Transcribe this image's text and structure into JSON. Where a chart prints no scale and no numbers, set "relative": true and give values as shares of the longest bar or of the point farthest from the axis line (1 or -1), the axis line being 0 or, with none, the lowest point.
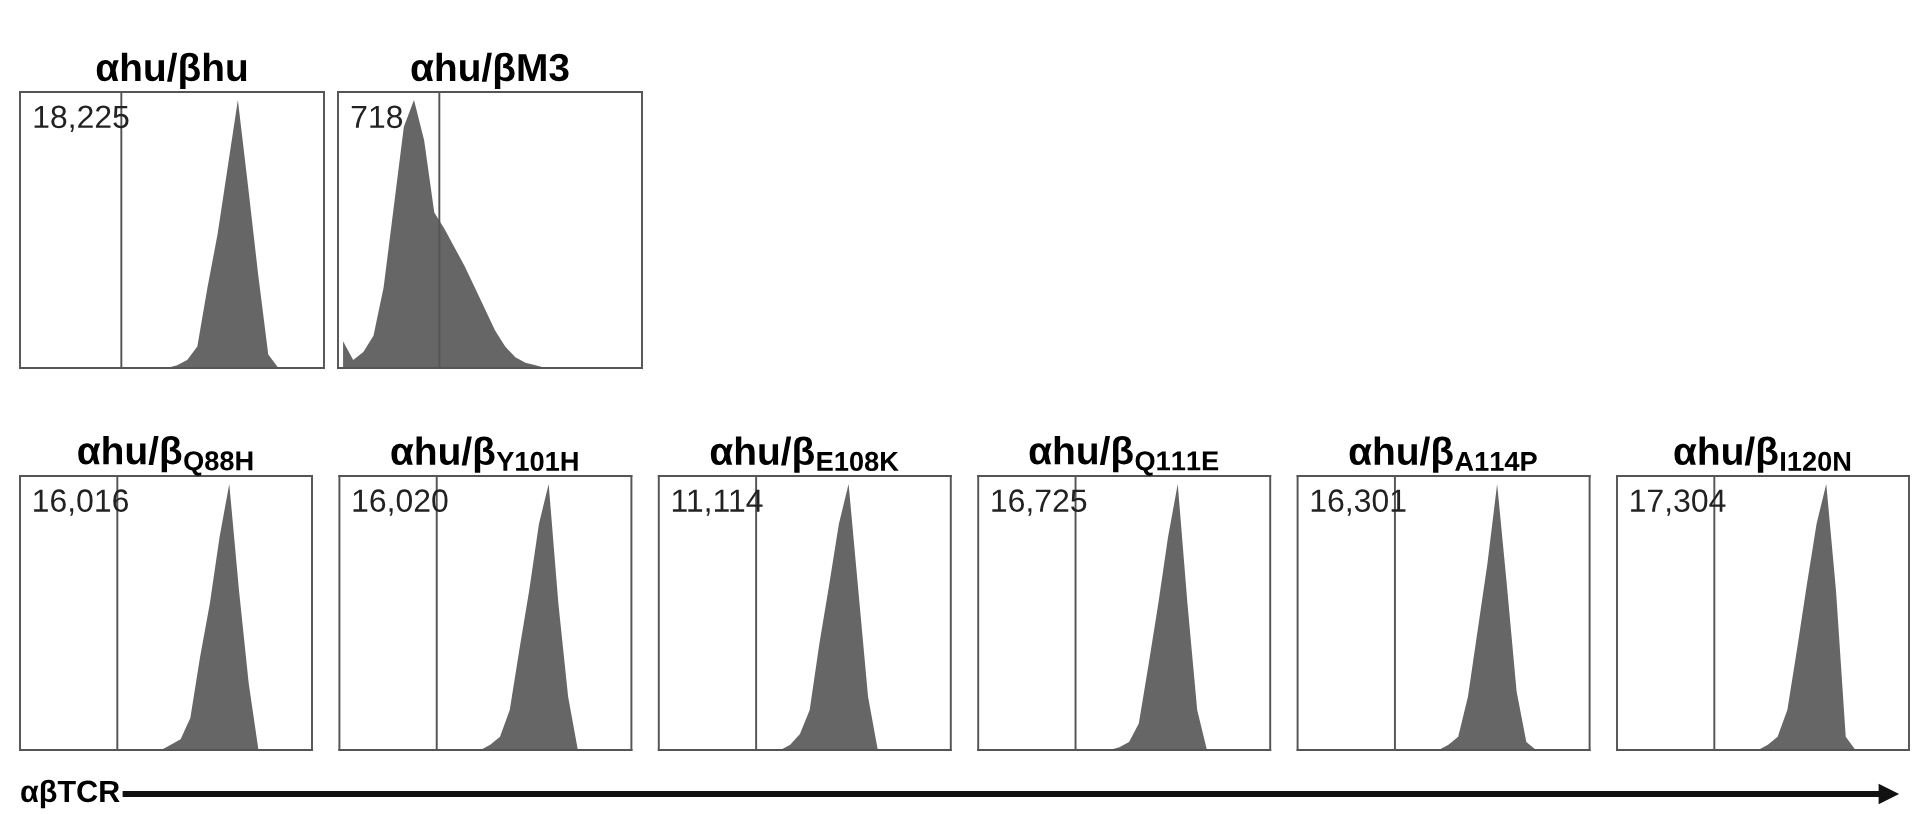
{
  "chart_data": [
    {
      "type": "area",
      "title": "αhu/βhu",
      "relative": true,
      "tick_labels": false,
      "categories": [
        null,
        null,
        null,
        null,
        null,
        null,
        null,
        null,
        null,
        null,
        null,
        null,
        null,
        null,
        null,
        null,
        null,
        null,
        null,
        null,
        null,
        null,
        null,
        null,
        null,
        null,
        null,
        null,
        null,
        null
      ],
      "series": [
        {
          "color": "#666666",
          "values": [
            0,
            0,
            0,
            0,
            0,
            0,
            0,
            0,
            0,
            0,
            0,
            0,
            0,
            0,
            0,
            0.01,
            0.03,
            0.08,
            0.3,
            0.5,
            0.75,
            1,
            0.68,
            0.35,
            0.05,
            0,
            0,
            0,
            0,
            0
          ]
        }
      ],
      "annotations": [
        "18,225"
      ]
    },
    {
      "type": "area",
      "title": "αhu/βM3",
      "relative": true,
      "tick_labels": false,
      "categories": [
        null,
        null,
        null,
        null,
        null,
        null,
        null,
        null,
        null,
        null,
        null,
        null,
        null,
        null,
        null,
        null,
        null,
        null,
        null,
        null,
        null,
        null,
        null,
        null,
        null,
        null,
        null,
        null,
        null,
        null
      ],
      "series": [
        {
          "color": "#666666",
          "values": [
            0.1,
            0.03,
            0.06,
            0.12,
            0.3,
            0.6,
            0.9,
            1,
            0.85,
            0.58,
            0.52,
            0.45,
            0.38,
            0.3,
            0.22,
            0.14,
            0.08,
            0.04,
            0.02,
            0.01,
            0,
            0,
            0,
            0,
            0,
            0,
            0,
            0,
            0,
            0
          ]
        }
      ],
      "annotations": [
        "718"
      ]
    },
    {
      "type": "area",
      "title": "αhu/β$_{Q88H}$",
      "relative": true,
      "tick_labels": false,
      "categories": [
        null,
        null,
        null,
        null,
        null,
        null,
        null,
        null,
        null,
        null,
        null,
        null,
        null,
        null,
        null,
        null,
        null,
        null,
        null,
        null,
        null,
        null,
        null,
        null,
        null,
        null,
        null,
        null,
        null,
        null
      ],
      "series": [
        {
          "color": "#666666",
          "values": [
            0,
            0,
            0,
            0,
            0,
            0,
            0,
            0,
            0,
            0,
            0,
            0,
            0,
            0,
            0,
            0.02,
            0.04,
            0.12,
            0.35,
            0.55,
            0.8,
            1,
            0.6,
            0.25,
            0,
            0,
            0,
            0,
            0,
            0
          ]
        }
      ],
      "annotations": [
        "16,016"
      ]
    },
    {
      "type": "area",
      "title": "αhu/β$_{Y101H}$",
      "relative": true,
      "tick_labels": false,
      "categories": [
        null,
        null,
        null,
        null,
        null,
        null,
        null,
        null,
        null,
        null,
        null,
        null,
        null,
        null,
        null,
        null,
        null,
        null,
        null,
        null,
        null,
        null,
        null,
        null,
        null,
        null,
        null,
        null,
        null,
        null
      ],
      "series": [
        {
          "color": "#666666",
          "values": [
            0,
            0,
            0,
            0,
            0,
            0,
            0,
            0,
            0,
            0,
            0,
            0,
            0,
            0,
            0,
            0.02,
            0.05,
            0.15,
            0.38,
            0.6,
            0.85,
            1,
            0.55,
            0.2,
            0,
            0,
            0,
            0,
            0,
            0
          ]
        }
      ],
      "annotations": [
        "16,020"
      ]
    },
    {
      "type": "area",
      "title": "αhu/β$_{E108K}$",
      "relative": true,
      "tick_labels": false,
      "categories": [
        null,
        null,
        null,
        null,
        null,
        null,
        null,
        null,
        null,
        null,
        null,
        null,
        null,
        null,
        null,
        null,
        null,
        null,
        null,
        null,
        null,
        null,
        null,
        null,
        null,
        null,
        null,
        null,
        null,
        null
      ],
      "series": [
        {
          "color": "#666666",
          "values": [
            0,
            0,
            0,
            0,
            0,
            0,
            0,
            0,
            0,
            0,
            0,
            0,
            0,
            0.02,
            0.06,
            0.15,
            0.4,
            0.62,
            0.85,
            1,
            0.6,
            0.2,
            0,
            0,
            0,
            0,
            0,
            0,
            0,
            0
          ]
        }
      ],
      "annotations": [
        "11,114"
      ]
    },
    {
      "type": "area",
      "title": "αhu/β$_{Q111E}$",
      "relative": true,
      "tick_labels": false,
      "categories": [
        null,
        null,
        null,
        null,
        null,
        null,
        null,
        null,
        null,
        null,
        null,
        null,
        null,
        null,
        null,
        null,
        null,
        null,
        null,
        null,
        null,
        null,
        null,
        null,
        null,
        null,
        null,
        null,
        null,
        null
      ],
      "series": [
        {
          "color": "#666666",
          "values": [
            0,
            0,
            0,
            0,
            0,
            0,
            0,
            0,
            0,
            0,
            0,
            0,
            0,
            0,
            0.01,
            0.03,
            0.1,
            0.32,
            0.55,
            0.8,
            1,
            0.55,
            0.15,
            0,
            0,
            0,
            0,
            0,
            0,
            0
          ]
        }
      ],
      "annotations": [
        "16,725"
      ]
    },
    {
      "type": "area",
      "title": "αhu/β$_{A114P}$",
      "relative": true,
      "tick_labels": false,
      "categories": [
        null,
        null,
        null,
        null,
        null,
        null,
        null,
        null,
        null,
        null,
        null,
        null,
        null,
        null,
        null,
        null,
        null,
        null,
        null,
        null,
        null,
        null,
        null,
        null,
        null,
        null,
        null,
        null,
        null,
        null
      ],
      "series": [
        {
          "color": "#666666",
          "values": [
            0,
            0,
            0,
            0,
            0,
            0,
            0,
            0,
            0,
            0,
            0,
            0,
            0,
            0,
            0,
            0.02,
            0.05,
            0.2,
            0.45,
            0.7,
            1,
            0.62,
            0.22,
            0.03,
            0,
            0,
            0,
            0,
            0,
            0
          ]
        }
      ],
      "annotations": [
        "16,301"
      ]
    },
    {
      "type": "area",
      "title": "αhu/β$_{I120N}$",
      "relative": true,
      "tick_labels": false,
      "categories": [
        null,
        null,
        null,
        null,
        null,
        null,
        null,
        null,
        null,
        null,
        null,
        null,
        null,
        null,
        null,
        null,
        null,
        null,
        null,
        null,
        null,
        null,
        null,
        null,
        null,
        null,
        null,
        null,
        null,
        null
      ],
      "series": [
        {
          "color": "#666666",
          "values": [
            0,
            0,
            0,
            0,
            0,
            0,
            0,
            0,
            0,
            0,
            0,
            0,
            0,
            0,
            0,
            0.02,
            0.05,
            0.15,
            0.38,
            0.62,
            0.85,
            1,
            0.6,
            0.05,
            0,
            0,
            0,
            0,
            0,
            0
          ]
        }
      ],
      "annotations": [
        "17,304"
      ]
    },
    {
      "type": "other",
      "xlabel": "αβTCR"
    }
  ]
}
